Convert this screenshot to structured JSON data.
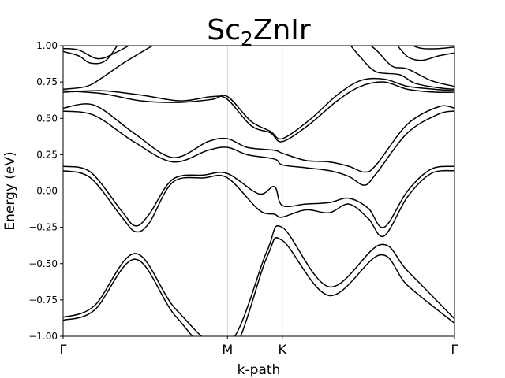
{
  "chart_data": {
    "type": "line",
    "title": "Sc₂ZnIr",
    "title_parts": [
      "Sc",
      "2",
      "ZnIr"
    ],
    "xlabel": "k-path",
    "ylabel": "Energy (eV)",
    "ylim": [
      -1.0,
      1.0
    ],
    "xlim": [
      0,
      100
    ],
    "grid": false,
    "legend": "none",
    "y_ticks": [
      1.0,
      0.75,
      0.5,
      0.25,
      0.0,
      -0.25,
      -0.5,
      -0.75,
      -1.0
    ],
    "y_tick_labels": [
      "1.00",
      "0.75",
      "0.50",
      "0.25",
      "0.00",
      "−0.25",
      "−0.50",
      "−0.75",
      "−1.00"
    ],
    "k_points": [
      {
        "label": "Γ",
        "x": 0
      },
      {
        "label": "M",
        "x": 42
      },
      {
        "label": "K",
        "x": 56
      },
      {
        "label": "Γ",
        "x": 100
      }
    ],
    "fermi_level": {
      "y": 0.0,
      "color": "#ff0000"
    },
    "line_color": "#000000",
    "series": [
      {
        "x": [
          0,
          8,
          18.5,
          29,
          42,
          52,
          56,
          68,
          81,
          88,
          100
        ],
        "y": [
          -0.89,
          -0.82,
          -0.47,
          -0.87,
          -1.15,
          -0.46,
          -0.34,
          -0.72,
          -0.44,
          -0.65,
          -0.91
        ]
      },
      {
        "x": [
          0,
          8,
          18.5,
          29,
          42,
          52,
          56,
          68,
          81,
          88,
          100
        ],
        "y": [
          -0.87,
          -0.79,
          -0.43,
          -0.82,
          -1.06,
          -0.42,
          -0.25,
          -0.66,
          -0.37,
          -0.55,
          -0.88
        ]
      },
      {
        "x": [
          0,
          7,
          15,
          18.5,
          22,
          28,
          36,
          42,
          50,
          54,
          56,
          62,
          68,
          73,
          78,
          82,
          88,
          94,
          100
        ],
        "y": [
          0.14,
          0.09,
          -0.18,
          -0.28,
          -0.22,
          0.06,
          0.09,
          0.09,
          -0.13,
          -0.16,
          -0.18,
          -0.13,
          -0.15,
          -0.09,
          -0.19,
          -0.31,
          -0.04,
          0.12,
          0.14
        ]
      },
      {
        "x": [
          0,
          7,
          15,
          18.5,
          22,
          28,
          36,
          42,
          50,
          54,
          56,
          62,
          68,
          73,
          78,
          82,
          88,
          94,
          100
        ],
        "y": [
          0.17,
          0.13,
          -0.14,
          -0.24,
          -0.16,
          0.08,
          0.11,
          0.12,
          -0.02,
          0.03,
          -0.1,
          -0.09,
          -0.08,
          -0.05,
          -0.12,
          -0.25,
          0.0,
          0.15,
          0.17
        ]
      },
      {
        "x": [
          0,
          8,
          18,
          28,
          37,
          42,
          47,
          54,
          56,
          62,
          68,
          73,
          77,
          80,
          88,
          96,
          100
        ],
        "y": [
          0.55,
          0.52,
          0.34,
          0.2,
          0.28,
          0.3,
          0.25,
          0.22,
          0.18,
          0.16,
          0.14,
          0.1,
          0.04,
          0.12,
          0.4,
          0.53,
          0.55
        ]
      },
      {
        "x": [
          0,
          8,
          18,
          28,
          37,
          42,
          47,
          54,
          56,
          62,
          68,
          73,
          77,
          80,
          88,
          96,
          100
        ],
        "y": [
          0.57,
          0.59,
          0.4,
          0.23,
          0.34,
          0.36,
          0.3,
          0.28,
          0.26,
          0.21,
          0.2,
          0.17,
          0.13,
          0.18,
          0.46,
          0.58,
          0.57
        ]
      },
      {
        "x": [
          0,
          10,
          20,
          30,
          38,
          42,
          48,
          53,
          56,
          63,
          70,
          76,
          82,
          88,
          95,
          100
        ],
        "y": [
          0.68,
          0.69,
          0.66,
          0.62,
          0.65,
          0.63,
          0.45,
          0.4,
          0.34,
          0.46,
          0.62,
          0.72,
          0.75,
          0.7,
          0.68,
          0.68
        ]
      },
      {
        "x": [
          0,
          10,
          20,
          30,
          38,
          42,
          48,
          53,
          56,
          63,
          70,
          76,
          82,
          88,
          95,
          100
        ],
        "y": [
          0.69,
          0.67,
          0.62,
          0.61,
          0.63,
          0.65,
          0.48,
          0.41,
          0.36,
          0.49,
          0.66,
          0.76,
          0.77,
          0.72,
          0.7,
          0.69
        ]
      },
      {
        "x": [
          0,
          6,
          10,
          16,
          26
        ],
        "y": [
          0.7,
          0.72,
          0.78,
          0.89,
          1.05
        ]
      },
      {
        "x": [
          0,
          4,
          9,
          14,
          20
        ],
        "y": [
          0.98,
          0.97,
          0.91,
          0.96,
          1.05
        ]
      },
      {
        "x": [
          0,
          4,
          7,
          11,
          15
        ],
        "y": [
          0.96,
          0.93,
          0.88,
          0.9,
          1.05
        ]
      },
      {
        "x": [
          72,
          76,
          80,
          86,
          90,
          96,
          100
        ],
        "y": [
          1.05,
          0.92,
          0.82,
          0.8,
          0.74,
          0.71,
          0.7
        ]
      },
      {
        "x": [
          76,
          80,
          84,
          88,
          94,
          100
        ],
        "y": [
          1.05,
          0.97,
          0.86,
          0.84,
          0.76,
          0.72
        ]
      },
      {
        "x": [
          84,
          87,
          89,
          92,
          96,
          100
        ],
        "y": [
          1.05,
          0.95,
          0.91,
          0.9,
          0.93,
          0.95
        ]
      },
      {
        "x": [
          88,
          89.5,
          92,
          96,
          100
        ],
        "y": [
          1.05,
          1.0,
          0.98,
          0.98,
          0.99
        ]
      }
    ]
  }
}
